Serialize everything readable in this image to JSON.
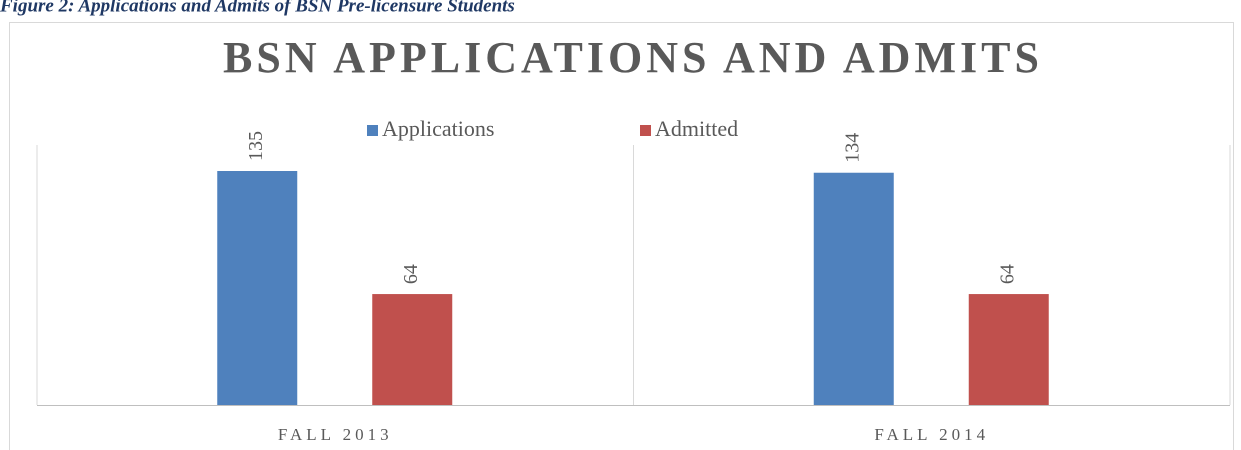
{
  "caption": "Figure 2: Applications and Admits of BSN Pre-licensure Students",
  "chart_data": {
    "type": "bar",
    "title": "BSN APPLICATIONS AND ADMITS",
    "categories": [
      "FALL 2013",
      "FALL 2014"
    ],
    "series": [
      {
        "name": "Applications",
        "color": "#4f81bd",
        "values": [
          135,
          134
        ]
      },
      {
        "name": "Admitted",
        "color": "#c0504d",
        "values": [
          64,
          64
        ]
      }
    ],
    "ylim": [
      0,
      150
    ],
    "legend": "top"
  }
}
